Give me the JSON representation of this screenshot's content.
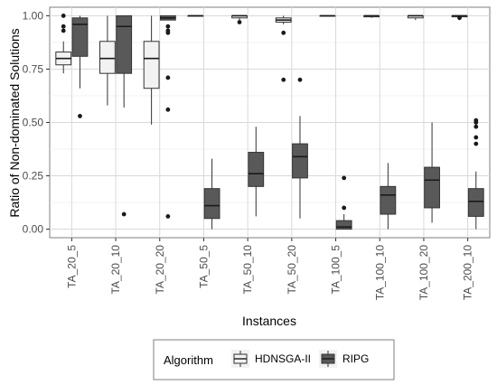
{
  "chart_data": {
    "type": "boxplot",
    "title": "",
    "xlabel": "Instances",
    "ylabel": "Ratio of Non-dominated Solutions",
    "ylim": [
      -0.04,
      1.04
    ],
    "yticks": [
      "0.00",
      "0.25",
      "0.50",
      "0.75",
      "1.00"
    ],
    "ytick_values": [
      0,
      0.25,
      0.5,
      0.75,
      1.0
    ],
    "grid": true,
    "legend_position": "bottom",
    "legend_title": "Algorithm",
    "categories": [
      "TA_20_5",
      "TA_20_10",
      "TA_20_20",
      "TA_50_5",
      "TA_50_10",
      "TA_50_20",
      "TA_100_5",
      "TA_100_10",
      "TA_100_20",
      "TA_200_10"
    ],
    "series": [
      {
        "name": "HDNSGA-II",
        "color": "#f2f2f2",
        "boxes": [
          {
            "min": 0.73,
            "q1": 0.77,
            "median": 0.8,
            "q3": 0.83,
            "max": 0.88,
            "outliers": [
              0.93,
              0.95,
              1.0
            ]
          },
          {
            "min": 0.58,
            "q1": 0.73,
            "median": 0.8,
            "q3": 0.88,
            "max": 1.0,
            "outliers": []
          },
          {
            "min": 0.49,
            "q1": 0.66,
            "median": 0.8,
            "q3": 0.88,
            "max": 1.0,
            "outliers": []
          },
          {
            "min": 1.0,
            "q1": 1.0,
            "median": 1.0,
            "q3": 1.0,
            "max": 1.0,
            "outliers": []
          },
          {
            "min": 0.98,
            "q1": 0.99,
            "median": 1.0,
            "q3": 1.0,
            "max": 1.0,
            "outliers": [
              0.97
            ]
          },
          {
            "min": 0.96,
            "q1": 0.97,
            "median": 0.98,
            "q3": 0.99,
            "max": 1.0,
            "outliers": [
              0.92,
              0.7
            ]
          },
          {
            "min": 1.0,
            "q1": 1.0,
            "median": 1.0,
            "q3": 1.0,
            "max": 1.0,
            "outliers": []
          },
          {
            "min": 0.99,
            "q1": 0.995,
            "median": 1.0,
            "q3": 1.0,
            "max": 1.0,
            "outliers": []
          },
          {
            "min": 0.98,
            "q1": 0.99,
            "median": 1.0,
            "q3": 1.0,
            "max": 1.0,
            "outliers": []
          },
          {
            "min": 0.99,
            "q1": 0.995,
            "median": 1.0,
            "q3": 1.0,
            "max": 1.0,
            "outliers": [
              0.99
            ]
          }
        ]
      },
      {
        "name": "RIPG",
        "color": "#595959",
        "boxes": [
          {
            "min": 0.66,
            "q1": 0.81,
            "median": 0.96,
            "q3": 0.99,
            "max": 1.0,
            "outliers": [
              0.53
            ]
          },
          {
            "min": 0.57,
            "q1": 0.73,
            "median": 0.95,
            "q3": 1.0,
            "max": 1.0,
            "outliers": [
              0.07
            ]
          },
          {
            "min": 0.98,
            "q1": 0.98,
            "median": 0.99,
            "q3": 1.0,
            "max": 1.0,
            "outliers": [
              0.95,
              0.93,
              0.92,
              0.71,
              0.56,
              0.06
            ]
          },
          {
            "min": 0.0,
            "q1": 0.05,
            "median": 0.11,
            "q3": 0.19,
            "max": 0.33,
            "outliers": []
          },
          {
            "min": 0.06,
            "q1": 0.2,
            "median": 0.26,
            "q3": 0.36,
            "max": 0.48,
            "outliers": []
          },
          {
            "min": 0.05,
            "q1": 0.24,
            "median": 0.34,
            "q3": 0.4,
            "max": 0.53,
            "outliers": [
              0.7
            ]
          },
          {
            "min": 0.0,
            "q1": 0.0,
            "median": 0.01,
            "q3": 0.04,
            "max": 0.07,
            "outliers": [
              0.1,
              0.24
            ]
          },
          {
            "min": 0.0,
            "q1": 0.07,
            "median": 0.16,
            "q3": 0.2,
            "max": 0.31,
            "outliers": []
          },
          {
            "min": 0.03,
            "q1": 0.1,
            "median": 0.23,
            "q3": 0.29,
            "max": 0.5,
            "outliers": []
          },
          {
            "min": 0.0,
            "q1": 0.06,
            "median": 0.13,
            "q3": 0.19,
            "max": 0.27,
            "outliers": [
              0.4,
              0.43,
              0.48,
              0.5,
              0.51
            ]
          }
        ]
      }
    ]
  }
}
